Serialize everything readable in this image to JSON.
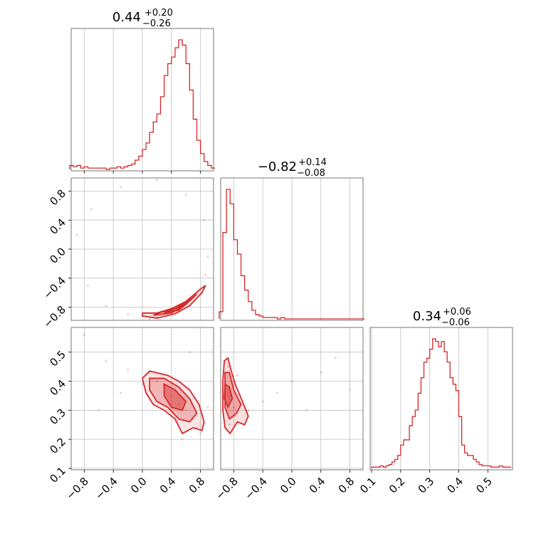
{
  "chart_data": {
    "type": "corner",
    "color": "#d62728",
    "grid": true,
    "parameters": [
      {
        "value": "0.44",
        "plus": "+0.20",
        "minus": "−0.26",
        "range": [
          -0.98,
          0.98
        ]
      },
      {
        "value": "−0.82",
        "plus": "+0.14",
        "minus": "−0.08",
        "range": [
          -0.98,
          0.98
        ]
      },
      {
        "value": "0.34",
        "plus": "+0.06",
        "minus": "−0.06",
        "range": [
          0.095,
          0.585
        ]
      }
    ],
    "ticks": {
      "p1": [
        {
          "v": -0.8,
          "label": "−0.8"
        },
        {
          "v": -0.4,
          "label": "−0.4"
        },
        {
          "v": 0.0,
          "label": "0.0"
        },
        {
          "v": 0.4,
          "label": "0.4"
        },
        {
          "v": 0.8,
          "label": "0.8"
        }
      ],
      "p2": [
        {
          "v": -0.8,
          "label": "−0.8"
        },
        {
          "v": -0.4,
          "label": "−0.4"
        },
        {
          "v": 0.0,
          "label": "0.0"
        },
        {
          "v": 0.4,
          "label": "0.4"
        },
        {
          "v": 0.8,
          "label": "0.8"
        }
      ],
      "p3": [
        {
          "v": 0.1,
          "label": "0.1"
        },
        {
          "v": 0.2,
          "label": "0.2"
        },
        {
          "v": 0.3,
          "label": "0.3"
        },
        {
          "v": 0.4,
          "label": "0.4"
        },
        {
          "v": 0.5,
          "label": "0.5"
        }
      ]
    },
    "hist1": {
      "bins": [
        -1.0,
        -0.95,
        -0.9,
        -0.85,
        -0.8,
        -0.75,
        -0.7,
        -0.65,
        -0.6,
        -0.55,
        -0.5,
        -0.45,
        -0.4,
        -0.35,
        -0.3,
        -0.25,
        -0.2,
        -0.15,
        -0.1,
        -0.05,
        0.0,
        0.05,
        0.1,
        0.15,
        0.2,
        0.25,
        0.3,
        0.35,
        0.4,
        0.45,
        0.5,
        0.55,
        0.6,
        0.65,
        0.7,
        0.75,
        0.8,
        0.85,
        0.9,
        0.95,
        1.0
      ],
      "counts": [
        3,
        2,
        3,
        1,
        2,
        1,
        1,
        1,
        1,
        1,
        0,
        1,
        1,
        2,
        1,
        2,
        3,
        4,
        7,
        10,
        15,
        20,
        28,
        36,
        42,
        55,
        71,
        80,
        85,
        92,
        98,
        94,
        80,
        60,
        38,
        22,
        12,
        6,
        3,
        1
      ]
    },
    "hist2": {
      "bins": [
        -1.0,
        -0.95,
        -0.9,
        -0.85,
        -0.8,
        -0.75,
        -0.7,
        -0.65,
        -0.6,
        -0.55,
        -0.5,
        -0.45,
        -0.4,
        -0.35,
        -0.3,
        -0.25,
        -0.2,
        -0.15,
        -0.1,
        -0.05,
        0.0,
        0.05,
        0.1,
        0.15,
        0.2,
        0.25,
        0.3,
        0.35,
        0.4,
        0.45,
        0.5,
        0.55,
        0.6,
        0.65,
        0.7,
        0.75,
        0.8,
        0.85,
        0.9,
        0.95,
        1.0
      ],
      "counts": [
        5,
        60,
        90,
        80,
        55,
        45,
        30,
        20,
        12,
        6,
        3,
        2,
        1,
        1,
        1,
        1,
        0,
        1,
        0,
        0,
        0,
        0,
        0,
        0,
        0,
        0,
        0,
        0,
        0,
        0,
        0,
        0,
        0,
        0,
        0,
        0,
        0,
        0,
        0,
        0
      ]
    },
    "hist3": {
      "bins": [
        0.1,
        0.11,
        0.12,
        0.13,
        0.14,
        0.15,
        0.16,
        0.17,
        0.18,
        0.19,
        0.2,
        0.21,
        0.22,
        0.23,
        0.24,
        0.25,
        0.26,
        0.27,
        0.28,
        0.29,
        0.3,
        0.31,
        0.32,
        0.33,
        0.34,
        0.35,
        0.36,
        0.37,
        0.38,
        0.39,
        0.4,
        0.41,
        0.42,
        0.43,
        0.44,
        0.45,
        0.46,
        0.47,
        0.48,
        0.49,
        0.5,
        0.51,
        0.52,
        0.53,
        0.54,
        0.55,
        0.56,
        0.57,
        0.58
      ],
      "counts": [
        1,
        1,
        1,
        2,
        1,
        2,
        3,
        5,
        7,
        10,
        18,
        22,
        22,
        33,
        40,
        45,
        58,
        70,
        82,
        85,
        92,
        100,
        98,
        94,
        98,
        90,
        82,
        70,
        65,
        60,
        40,
        18,
        12,
        10,
        10,
        7,
        5,
        3,
        2,
        2,
        2,
        1,
        1,
        1,
        2,
        1,
        1,
        1
      ]
    },
    "scatter21": [
      [
        0.45,
        -0.88
      ],
      [
        0.3,
        -0.9
      ],
      [
        0.6,
        -0.75
      ],
      [
        0.75,
        -0.6
      ],
      [
        0.2,
        -0.93
      ],
      [
        -0.2,
        -0.9
      ],
      [
        -0.5,
        -0.78
      ],
      [
        -0.75,
        -0.5
      ],
      [
        0.87,
        -0.35
      ],
      [
        0.9,
        -0.1
      ],
      [
        0.85,
        0.4
      ],
      [
        0.6,
        0.75
      ],
      [
        0.2,
        0.95
      ],
      [
        -0.3,
        0.85
      ],
      [
        -0.7,
        0.55
      ],
      [
        -0.9,
        0.2
      ],
      [
        0.1,
        -0.96
      ],
      [
        0.7,
        -0.65
      ],
      [
        0.55,
        -0.82
      ],
      [
        0.35,
        -0.9
      ]
    ],
    "scatter31": [
      [
        0.3,
        0.38
      ],
      [
        0.5,
        0.32
      ],
      [
        0.6,
        0.3
      ],
      [
        0.7,
        0.27
      ],
      [
        0.2,
        0.4
      ],
      [
        0.1,
        0.43
      ],
      [
        -0.2,
        0.44
      ],
      [
        -0.5,
        0.47
      ],
      [
        -0.8,
        0.56
      ],
      [
        0.75,
        0.24
      ],
      [
        0.8,
        0.22
      ],
      [
        0.4,
        0.35
      ],
      [
        0.0,
        0.39
      ],
      [
        -0.3,
        0.36
      ],
      [
        0.65,
        0.5
      ],
      [
        0.9,
        0.31
      ],
      [
        -0.6,
        0.3
      ],
      [
        0.55,
        0.2
      ]
    ],
    "scatter32": [
      [
        -0.85,
        0.35
      ],
      [
        -0.82,
        0.4
      ],
      [
        -0.8,
        0.31
      ],
      [
        -0.78,
        0.28
      ],
      [
        -0.7,
        0.32
      ],
      [
        -0.6,
        0.3
      ],
      [
        -0.4,
        0.33
      ],
      [
        -0.2,
        0.36
      ],
      [
        0.0,
        0.4
      ],
      [
        0.4,
        0.43
      ],
      [
        0.8,
        0.37
      ],
      [
        -0.88,
        0.45
      ],
      [
        -0.86,
        0.25
      ],
      [
        -0.75,
        0.42
      ],
      [
        0.2,
        0.3
      ],
      [
        0.6,
        0.48
      ]
    ]
  }
}
